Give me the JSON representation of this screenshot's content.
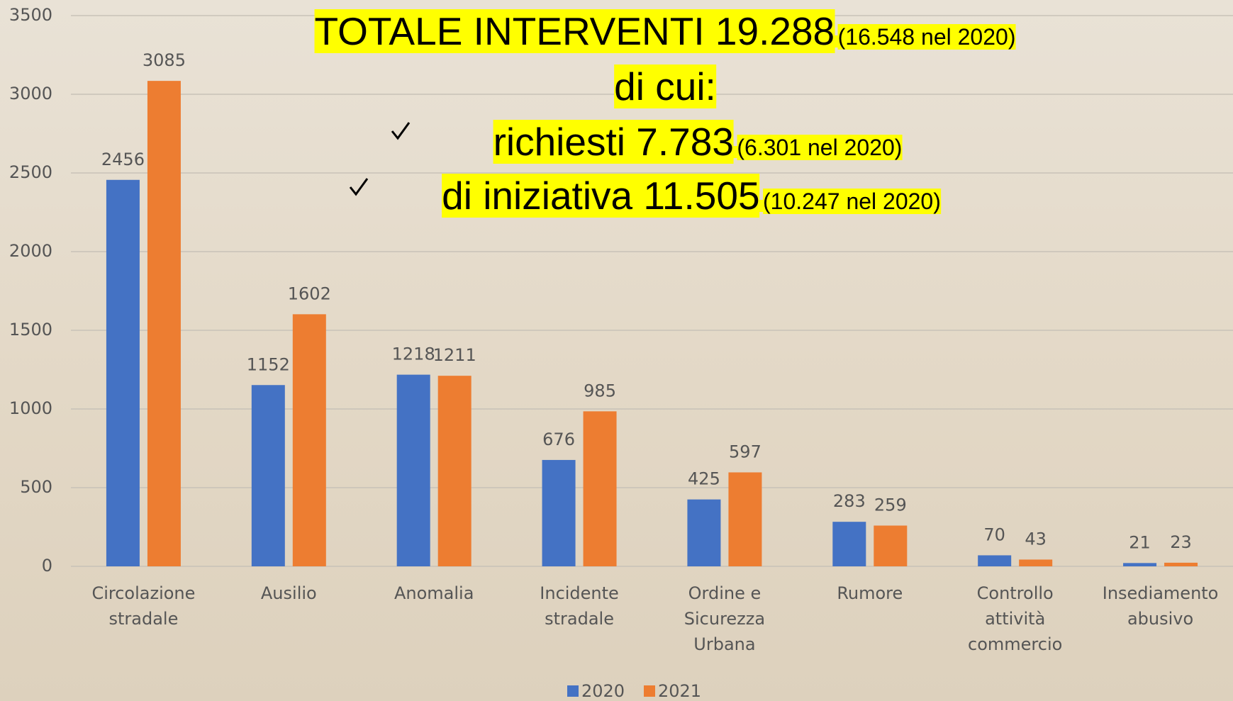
{
  "chart_data": {
    "type": "bar",
    "categories": [
      "Circolazione stradale",
      "Ausilio",
      "Anomalia",
      "Incidente stradale",
      "Ordine e Sicurezza Urbana",
      "Rumore",
      "Controllo attività commercio",
      "Insediamento abusivo"
    ],
    "series": [
      {
        "name": "2020",
        "color": "#4472c4",
        "values": [
          2456,
          1152,
          1218,
          676,
          425,
          283,
          70,
          21
        ]
      },
      {
        "name": "2021",
        "color": "#ed7d31",
        "values": [
          3085,
          1602,
          1211,
          985,
          597,
          259,
          43,
          23
        ]
      }
    ],
    "ylim": [
      0,
      3500
    ],
    "yticks": [
      0,
      500,
      1000,
      1500,
      2000,
      2500,
      3000,
      3500
    ],
    "grid": true,
    "legend": "bottom",
    "annotations": [
      {
        "main": "TOTALE INTERVENTI 19.288",
        "note": "(16.548 nel 2020)"
      },
      {
        "main": "di cui:"
      },
      {
        "main": "richiesti 7.783",
        "note": "(6.301 nel 2020)"
      },
      {
        "main": "di iniziativa 11.505",
        "note": "(10.247 nel 2020)"
      }
    ]
  }
}
